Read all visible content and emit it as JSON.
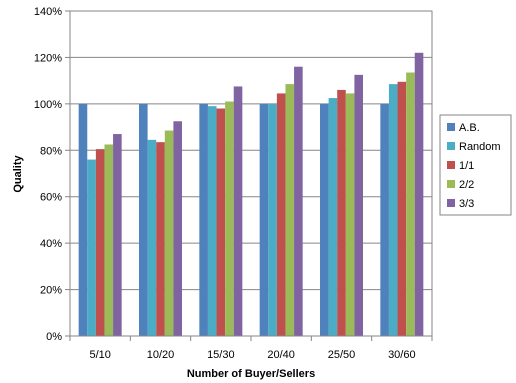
{
  "chart_data": {
    "type": "bar",
    "title": "",
    "xlabel": "Number of Buyer/Sellers",
    "ylabel": "Quality",
    "categories": [
      "5/10",
      "10/20",
      "15/30",
      "20/40",
      "25/50",
      "30/60"
    ],
    "ylim": [
      0,
      140
    ],
    "yticks": [
      0,
      20,
      40,
      60,
      80,
      100,
      120,
      140
    ],
    "ytick_labels": [
      "0%",
      "20%",
      "40%",
      "60%",
      "80%",
      "100%",
      "120%",
      "140%"
    ],
    "grid": "horizontal",
    "legend_position": "right",
    "series": [
      {
        "name": "A.B.",
        "color": "#4f81bd",
        "values": [
          100,
          100,
          100,
          100,
          100,
          100
        ]
      },
      {
        "name": "Random",
        "color": "#4bacc6",
        "values": [
          76,
          84.5,
          99,
          100,
          102.5,
          108.5
        ]
      },
      {
        "name": "1/1",
        "color": "#c0504d",
        "values": [
          80.5,
          83.5,
          98,
          104.5,
          106,
          109.5
        ]
      },
      {
        "name": "2/2",
        "color": "#9bbb59",
        "values": [
          82.5,
          88.5,
          101,
          108.5,
          104.5,
          113.5
        ]
      },
      {
        "name": "3/3",
        "color": "#8064a2",
        "values": [
          87,
          92.5,
          107.5,
          116,
          112.5,
          122
        ]
      }
    ]
  }
}
